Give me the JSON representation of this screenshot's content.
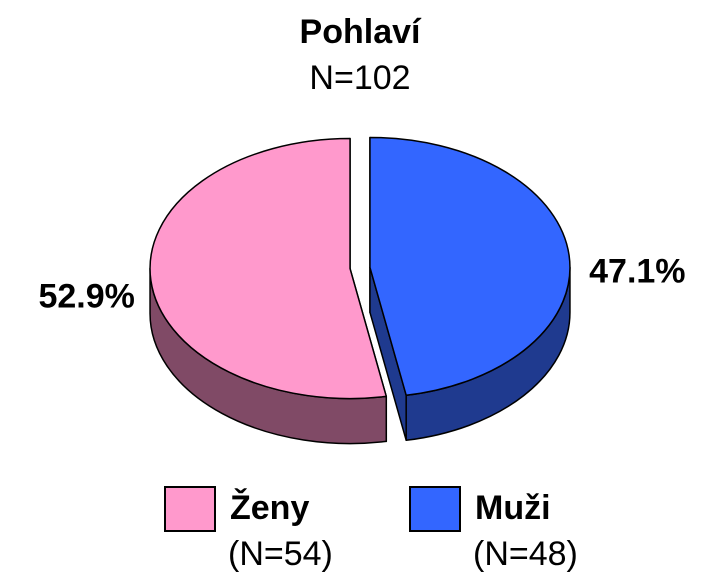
{
  "chart_data": {
    "type": "pie",
    "title": "Pohlaví",
    "subtitle": "N=102",
    "categories": [
      "Ženy",
      "Muži"
    ],
    "legend_notes": [
      "(N=54)",
      "(N=48)"
    ],
    "values": [
      52.9,
      47.1
    ],
    "value_labels": [
      "52.9%",
      "47.1%"
    ],
    "colors": [
      "#ff99cc",
      "#3366ff"
    ],
    "side_colors": [
      "#804a66",
      "#1f3a8f"
    ],
    "start_category": 1,
    "legend": "bottom"
  }
}
